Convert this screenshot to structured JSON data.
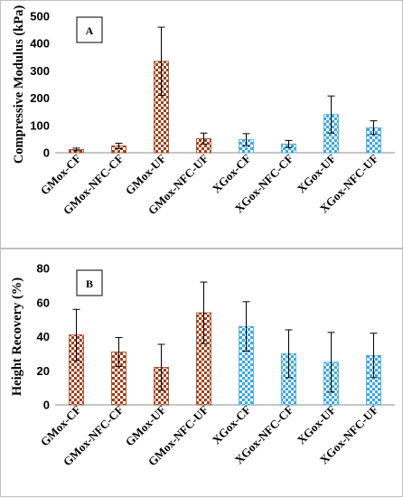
{
  "colors": {
    "gm_fill": "#a0401a",
    "xg_fill": "#3aa6e0",
    "axis": "#8c8c8c",
    "errorbar": "#000000"
  },
  "chart_data": [
    {
      "type": "bar",
      "panel_label": "A",
      "ylabel": "Compressive Modulus (kPa)",
      "ylim": [
        0,
        500
      ],
      "yticks": [
        0,
        100,
        200,
        300,
        400,
        500
      ],
      "grid": false,
      "categories": [
        "GMox-CF",
        "GMox-NFC-CF",
        "GMox-UF",
        "GMox-NFC-UF",
        "XGox-CF",
        "XGox-NFC-CF",
        "XGox-UF",
        "XGox-NFC-UF"
      ],
      "values": [
        12,
        25,
        335,
        52,
        48,
        32,
        140,
        92
      ],
      "errors": [
        5,
        10,
        125,
        20,
        22,
        13,
        68,
        25
      ],
      "bar_patterns": [
        "gm",
        "gm",
        "gm",
        "gm",
        "xg",
        "xg",
        "xg",
        "xg"
      ]
    },
    {
      "type": "bar",
      "panel_label": "B",
      "ylabel": "Height Recovery (%)",
      "ylim": [
        0,
        80
      ],
      "yticks": [
        0,
        20,
        40,
        60,
        80
      ],
      "grid": false,
      "categories": [
        "GMox-CF",
        "GMox-NFC-CF",
        "GMox-UF",
        "GMox-NFC-UF",
        "XGox-CF",
        "XGox-NFC-CF",
        "XGox-UF",
        "XGox-NFC-UF"
      ],
      "values": [
        41,
        31,
        22,
        54,
        46,
        30,
        25,
        29
      ],
      "errors": [
        15,
        8.5,
        13.5,
        18,
        14.5,
        14,
        17.5,
        13
      ],
      "bar_patterns": [
        "gm",
        "gm",
        "gm",
        "gm",
        "xg",
        "xg",
        "xg",
        "xg"
      ]
    }
  ]
}
